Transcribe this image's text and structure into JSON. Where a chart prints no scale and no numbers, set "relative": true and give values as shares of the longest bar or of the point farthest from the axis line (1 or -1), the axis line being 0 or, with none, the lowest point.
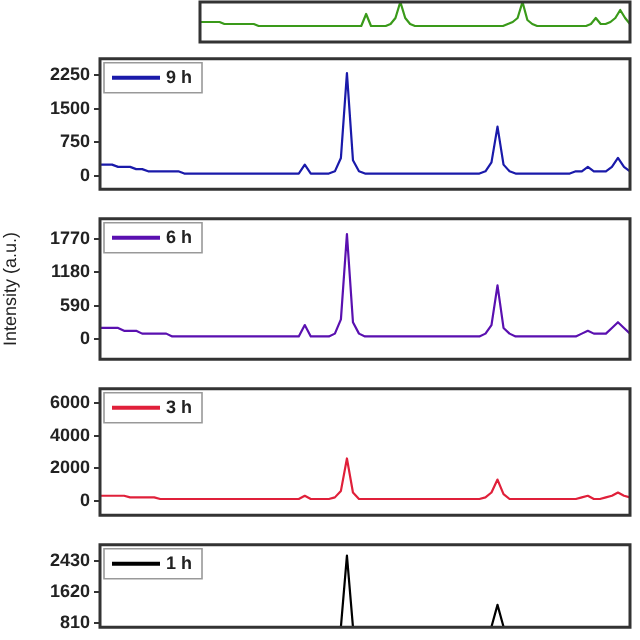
{
  "chart_data": [
    {
      "type": "line",
      "relative": true,
      "tick_labels": "y",
      "categories": [
        null,
        null,
        null,
        null,
        null,
        null,
        null,
        null,
        null,
        null,
        null,
        null,
        null,
        null,
        null,
        null,
        null,
        null,
        null,
        null,
        null,
        null,
        null,
        null,
        null,
        null,
        null,
        null,
        null,
        null,
        null,
        null,
        null,
        null,
        null,
        null,
        null,
        null,
        null,
        null,
        null,
        null,
        null,
        null,
        null,
        null,
        null,
        null,
        null,
        null,
        null,
        null,
        null,
        null,
        null,
        null,
        null,
        null,
        null,
        null,
        null,
        null,
        null,
        null,
        null,
        null,
        null,
        null,
        null,
        null,
        null,
        null,
        null,
        null,
        null,
        null,
        null,
        null,
        null,
        null,
        null,
        null,
        null,
        null,
        null,
        null,
        null,
        null,
        null
      ],
      "series": [
        {
          "color": "#3a9a1a",
          "values": [
            0.5,
            0.5,
            0.5,
            0.5,
            0.5,
            0.45,
            0.45,
            0.45,
            0.45,
            0.45,
            0.45,
            0.45,
            0.4,
            0.4,
            0.4,
            0.4,
            0.4,
            0.4,
            0.4,
            0.4,
            0.4,
            0.4,
            0.4,
            0.4,
            0.4,
            0.4,
            0.4,
            0.4,
            0.4,
            0.4,
            0.4,
            0.4,
            0.4,
            0.4,
            0.7,
            0.4,
            0.4,
            0.4,
            0.4,
            0.45,
            0.6,
            1,
            0.6,
            0.45,
            0.4,
            0.4,
            0.4,
            0.4,
            0.4,
            0.4,
            0.4,
            0.4,
            0.4,
            0.4,
            0.4,
            0.4,
            0.4,
            0.4,
            0.4,
            0.4,
            0.4,
            0.4,
            0.4,
            0.45,
            0.5,
            0.6,
            1,
            0.55,
            0.45,
            0.4,
            0.4,
            0.4,
            0.4,
            0.4,
            0.4,
            0.4,
            0.4,
            0.4,
            0.4,
            0.4,
            0.45,
            0.6,
            0.45,
            0.45,
            0.5,
            0.6,
            0.8,
            0.6,
            0.45
          ]
        }
      ]
    },
    {
      "type": "line",
      "legend": "top left",
      "tick_labels": "y",
      "ylim": [
        -300,
        2620
      ],
      "yticks": [
        0,
        750,
        1500,
        2250
      ],
      "categories": [
        null,
        null,
        null,
        null,
        null,
        null,
        null,
        null,
        null,
        null,
        null,
        null,
        null,
        null,
        null,
        null,
        null,
        null,
        null,
        null,
        null,
        null,
        null,
        null,
        null,
        null,
        null,
        null,
        null,
        null,
        null,
        null,
        null,
        null,
        null,
        null,
        null,
        null,
        null,
        null,
        null,
        null,
        null,
        null,
        null,
        null,
        null,
        null,
        null,
        null,
        null,
        null,
        null,
        null,
        null,
        null,
        null,
        null,
        null,
        null,
        null,
        null,
        null,
        null,
        null,
        null,
        null,
        null,
        null,
        null,
        null,
        null,
        null,
        null,
        null,
        null,
        null,
        null,
        null,
        null,
        null,
        null,
        null,
        null,
        null,
        null,
        null,
        null,
        null
      ],
      "series": [
        {
          "name": "9 h",
          "color": "#1a1aaa",
          "values": [
            250,
            250,
            250,
            200,
            200,
            200,
            150,
            150,
            100,
            100,
            100,
            100,
            100,
            100,
            50,
            50,
            50,
            50,
            50,
            50,
            50,
            50,
            50,
            50,
            50,
            50,
            50,
            50,
            50,
            50,
            50,
            50,
            50,
            50,
            250,
            50,
            50,
            50,
            50,
            100,
            400,
            2300,
            350,
            100,
            50,
            50,
            50,
            50,
            50,
            50,
            50,
            50,
            50,
            50,
            50,
            50,
            50,
            50,
            50,
            50,
            50,
            50,
            50,
            50,
            100,
            300,
            1100,
            250,
            100,
            50,
            50,
            50,
            50,
            50,
            50,
            50,
            50,
            50,
            50,
            100,
            100,
            200,
            100,
            100,
            100,
            200,
            400,
            200,
            100
          ]
        }
      ]
    },
    {
      "type": "line",
      "legend": "top left",
      "tick_labels": "y",
      "ylabel": "Intensity (a.u.)",
      "ylim": [
        -350,
        2120
      ],
      "yticks": [
        0,
        590,
        1180,
        1770
      ],
      "categories": [
        null,
        null,
        null,
        null,
        null,
        null,
        null,
        null,
        null,
        null,
        null,
        null,
        null,
        null,
        null,
        null,
        null,
        null,
        null,
        null,
        null,
        null,
        null,
        null,
        null,
        null,
        null,
        null,
        null,
        null,
        null,
        null,
        null,
        null,
        null,
        null,
        null,
        null,
        null,
        null,
        null,
        null,
        null,
        null,
        null,
        null,
        null,
        null,
        null,
        null,
        null,
        null,
        null,
        null,
        null,
        null,
        null,
        null,
        null,
        null,
        null,
        null,
        null,
        null,
        null,
        null,
        null,
        null,
        null,
        null,
        null,
        null,
        null,
        null,
        null,
        null,
        null,
        null,
        null,
        null,
        null,
        null,
        null,
        null,
        null,
        null,
        null,
        null,
        null
      ],
      "series": [
        {
          "name": "6 h",
          "color": "#5a10b0",
          "values": [
            200,
            200,
            200,
            200,
            150,
            150,
            150,
            100,
            100,
            100,
            100,
            100,
            50,
            50,
            50,
            50,
            50,
            50,
            50,
            50,
            50,
            50,
            50,
            50,
            50,
            50,
            50,
            50,
            50,
            50,
            50,
            50,
            50,
            50,
            250,
            50,
            50,
            50,
            50,
            100,
            350,
            1850,
            300,
            100,
            50,
            50,
            50,
            50,
            50,
            50,
            50,
            50,
            50,
            50,
            50,
            50,
            50,
            50,
            50,
            50,
            50,
            50,
            50,
            50,
            100,
            250,
            950,
            200,
            100,
            50,
            50,
            50,
            50,
            50,
            50,
            50,
            50,
            50,
            50,
            50,
            100,
            150,
            100,
            100,
            100,
            200,
            300,
            200,
            100
          ]
        }
      ]
    },
    {
      "type": "line",
      "legend": "top left",
      "tick_labels": "y",
      "ylim": [
        -900,
        6900
      ],
      "yticks": [
        0,
        2000,
        4000,
        6000
      ],
      "categories": [
        null,
        null,
        null,
        null,
        null,
        null,
        null,
        null,
        null,
        null,
        null,
        null,
        null,
        null,
        null,
        null,
        null,
        null,
        null,
        null,
        null,
        null,
        null,
        null,
        null,
        null,
        null,
        null,
        null,
        null,
        null,
        null,
        null,
        null,
        null,
        null,
        null,
        null,
        null,
        null,
        null,
        null,
        null,
        null,
        null,
        null,
        null,
        null,
        null,
        null,
        null,
        null,
        null,
        null,
        null,
        null,
        null,
        null,
        null,
        null,
        null,
        null,
        null,
        null,
        null,
        null,
        null,
        null,
        null,
        null,
        null,
        null,
        null,
        null,
        null,
        null,
        null,
        null,
        null,
        null,
        null,
        null,
        null,
        null,
        null,
        null,
        null,
        null,
        null
      ],
      "series": [
        {
          "name": "3 h",
          "color": "#e0203a",
          "values": [
            300,
            300,
            300,
            300,
            300,
            200,
            200,
            200,
            200,
            200,
            100,
            100,
            100,
            100,
            100,
            100,
            100,
            100,
            100,
            100,
            100,
            100,
            100,
            100,
            100,
            100,
            100,
            100,
            100,
            100,
            100,
            100,
            100,
            100,
            300,
            100,
            100,
            100,
            100,
            200,
            600,
            2600,
            500,
            100,
            100,
            100,
            100,
            100,
            100,
            100,
            100,
            100,
            100,
            100,
            100,
            100,
            100,
            100,
            100,
            100,
            100,
            100,
            100,
            100,
            200,
            500,
            1300,
            400,
            100,
            100,
            100,
            100,
            100,
            100,
            100,
            100,
            100,
            100,
            100,
            100,
            200,
            300,
            100,
            100,
            200,
            300,
            500,
            300,
            200
          ]
        }
      ]
    },
    {
      "type": "line",
      "legend": "top left",
      "tick_labels": "y",
      "ylim": [
        690,
        2865
      ],
      "yticks": [
        810,
        1620,
        2430
      ],
      "categories": [
        null,
        null,
        null,
        null,
        null,
        null,
        null,
        null,
        null,
        null,
        null,
        null,
        null,
        null,
        null,
        null,
        null,
        null,
        null,
        null,
        null,
        null,
        null,
        null,
        null,
        null,
        null,
        null,
        null,
        null,
        null,
        null,
        null,
        null,
        null,
        null,
        null,
        null,
        null,
        null,
        null,
        null,
        null,
        null,
        null,
        null,
        null,
        null,
        null,
        null,
        null,
        null,
        null,
        null,
        null,
        null,
        null,
        null,
        null,
        null,
        null,
        null,
        null,
        null,
        null,
        null,
        null,
        null,
        null,
        null,
        null,
        null,
        null,
        null,
        null,
        null,
        null,
        null,
        null,
        null,
        null,
        null,
        null,
        null,
        null,
        null,
        null,
        null,
        null
      ],
      "series": [
        {
          "name": "1 h",
          "color": "#000000",
          "values": [
            null,
            null,
            null,
            null,
            null,
            null,
            null,
            null,
            null,
            null,
            null,
            null,
            null,
            null,
            null,
            null,
            null,
            null,
            null,
            null,
            null,
            null,
            null,
            null,
            null,
            null,
            null,
            null,
            null,
            null,
            null,
            null,
            null,
            null,
            null,
            null,
            null,
            null,
            null,
            null,
            700,
            2580,
            700,
            null,
            null,
            null,
            null,
            null,
            null,
            null,
            null,
            null,
            null,
            null,
            null,
            null,
            null,
            null,
            null,
            null,
            null,
            null,
            null,
            null,
            null,
            700,
            1280,
            700,
            null,
            null,
            null,
            null,
            null,
            null,
            null,
            null,
            null,
            null,
            null,
            null,
            null,
            null,
            null,
            null,
            null,
            null,
            null,
            null,
            null
          ]
        }
      ]
    }
  ]
}
